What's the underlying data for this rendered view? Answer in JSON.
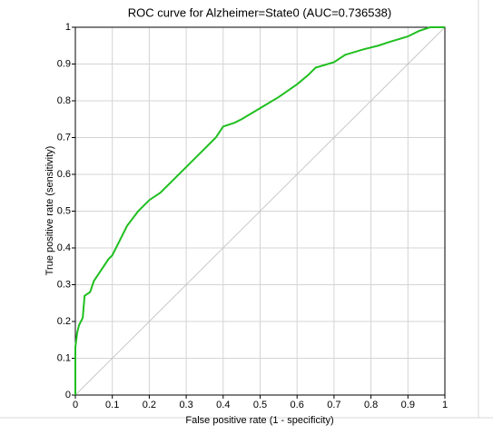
{
  "chart_data": {
    "type": "line",
    "title": "ROC curve for Alzheimer=State0 (AUC=0.736538)",
    "xlabel": "False positive rate (1 - specificity)",
    "ylabel": "True positive rate (sensitivity)",
    "xlim": [
      0,
      1
    ],
    "ylim": [
      0,
      1
    ],
    "xticks": [
      0,
      0.1,
      0.2,
      0.3,
      0.4,
      0.5,
      0.6,
      0.7,
      0.8,
      0.9,
      1
    ],
    "yticks": [
      0,
      0.1,
      0.2,
      0.3,
      0.4,
      0.5,
      0.6,
      0.7,
      0.8,
      0.9,
      1
    ],
    "grid": true,
    "series": [
      {
        "color": "#1fbf1f",
        "x": [
          0,
          0,
          0.005,
          0.01,
          0.02,
          0.025,
          0.04,
          0.05,
          0.07,
          0.09,
          0.1,
          0.12,
          0.14,
          0.17,
          0.2,
          0.23,
          0.3,
          0.35,
          0.38,
          0.4,
          0.43,
          0.45,
          0.5,
          0.55,
          0.6,
          0.63,
          0.65,
          0.7,
          0.73,
          0.78,
          0.82,
          0.85,
          0.9,
          0.93,
          0.96,
          1
        ],
        "values": [
          0,
          0.13,
          0.17,
          0.19,
          0.21,
          0.27,
          0.28,
          0.31,
          0.34,
          0.37,
          0.38,
          0.42,
          0.46,
          0.5,
          0.53,
          0.55,
          0.62,
          0.67,
          0.7,
          0.73,
          0.74,
          0.75,
          0.78,
          0.81,
          0.845,
          0.87,
          0.89,
          0.905,
          0.925,
          0.94,
          0.95,
          0.96,
          0.975,
          0.99,
          1.0,
          1
        ]
      }
    ]
  }
}
